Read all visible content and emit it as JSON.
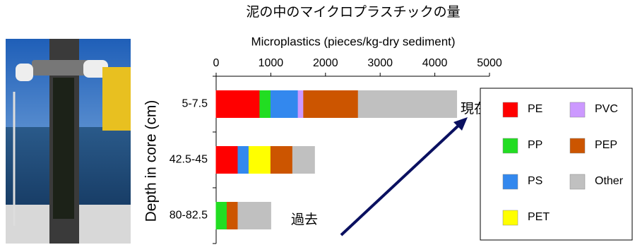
{
  "chart_data": {
    "type": "stacked_barh",
    "title": "泥の中のマイクロプラスチックの量",
    "x_label": "Microplastics (pieces/kg-dry sediment)",
    "y_label": "Depth in core (cm)",
    "annotations": [
      "現在",
      "過去"
    ],
    "categories": [
      "5-7.5",
      "42.5-45",
      "80-82.5"
    ],
    "series": [
      {
        "name": "PE",
        "color": "#ff0000",
        "values": [
          800,
          400,
          0
        ]
      },
      {
        "name": "PP",
        "color": "#22dd22",
        "values": [
          200,
          0,
          200
        ]
      },
      {
        "name": "PS",
        "color": "#3388ee",
        "values": [
          500,
          200,
          0
        ]
      },
      {
        "name": "PET",
        "color": "#ffff00",
        "values": [
          0,
          400,
          0
        ]
      },
      {
        "name": "PVC",
        "color": "#cc99ff",
        "values": [
          100,
          0,
          0
        ]
      },
      {
        "name": "PEP",
        "color": "#cc5500",
        "values": [
          1000,
          400,
          200
        ]
      },
      {
        "name": "Other",
        "color": "#c0c0c0",
        "values": [
          1800,
          400,
          600
        ]
      }
    ],
    "xlim": [
      0,
      5000
    ],
    "xticks": [
      0,
      1000,
      2000,
      3000,
      4000,
      5000
    ]
  }
}
